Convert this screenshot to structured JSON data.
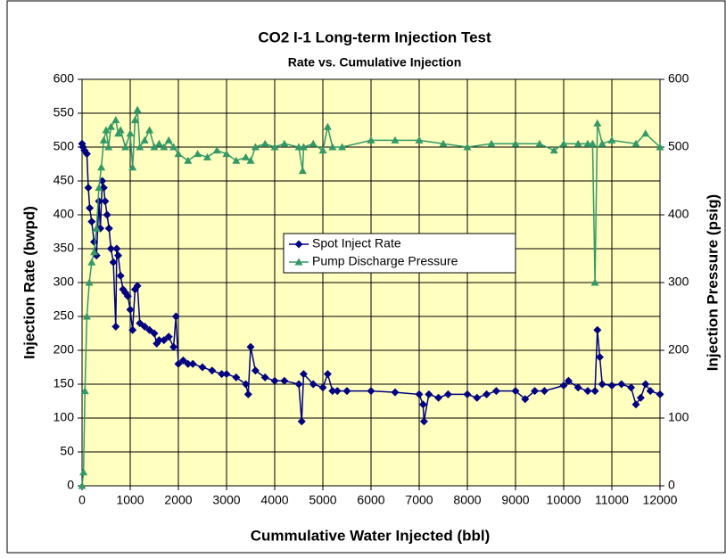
{
  "chart_data": {
    "type": "line",
    "title": "CO2 I-1 Long-term Injection Test",
    "subtitle": "Rate vs. Cumulative Injection",
    "x_label": "Cummulative Water Injected (bbl)",
    "y_label": "Injection Rate (bwpd)",
    "y2_label": "Injection Pressure (psig)",
    "xlim": [
      0,
      12000
    ],
    "xticks": [
      0,
      1000,
      2000,
      3000,
      4000,
      5000,
      6000,
      7000,
      8000,
      9000,
      10000,
      11000,
      12000
    ],
    "ylim": [
      0,
      600
    ],
    "yticks": [
      0,
      50,
      100,
      150,
      200,
      250,
      300,
      350,
      400,
      450,
      500,
      550,
      600
    ],
    "y2lim": [
      0,
      600
    ],
    "y2ticks": [
      0,
      100,
      200,
      300,
      400,
      500,
      600
    ],
    "grid": true,
    "legend": "center",
    "series": [
      {
        "name": "Spot Inject Rate",
        "color": "#000080",
        "marker": "diamond",
        "x": [
          0,
          20,
          50,
          100,
          130,
          160,
          200,
          250,
          300,
          350,
          380,
          420,
          450,
          480,
          520,
          560,
          600,
          650,
          700,
          720,
          750,
          800,
          850,
          900,
          950,
          1000,
          1050,
          1100,
          1150,
          1200,
          1300,
          1400,
          1500,
          1550,
          1600,
          1700,
          1800,
          1900,
          1950,
          2000,
          2100,
          2200,
          2300,
          2500,
          2700,
          2900,
          3000,
          3200,
          3400,
          3450,
          3500,
          3600,
          3800,
          4000,
          4200,
          4500,
          4560,
          4600,
          4800,
          5000,
          5100,
          5200,
          5300,
          5500,
          6000,
          6500,
          7000,
          7080,
          7100,
          7200,
          7400,
          7600,
          8000,
          8200,
          8400,
          8600,
          9000,
          9200,
          9400,
          9600,
          10000,
          10100,
          10300,
          10500,
          10650,
          10700,
          10750,
          10800,
          11000,
          11200,
          11400,
          11500,
          11600,
          11700,
          11800,
          12000
        ],
        "values": [
          505,
          500,
          495,
          490,
          440,
          410,
          390,
          360,
          340,
          420,
          380,
          450,
          440,
          420,
          400,
          380,
          350,
          330,
          235,
          350,
          340,
          310,
          290,
          285,
          280,
          260,
          230,
          290,
          295,
          240,
          235,
          230,
          225,
          210,
          215,
          215,
          220,
          205,
          250,
          180,
          185,
          180,
          180,
          175,
          170,
          165,
          165,
          160,
          150,
          135,
          205,
          170,
          160,
          155,
          155,
          150,
          95,
          165,
          150,
          145,
          165,
          140,
          140,
          140,
          140,
          138,
          135,
          120,
          95,
          135,
          130,
          135,
          135,
          130,
          135,
          140,
          140,
          128,
          140,
          140,
          148,
          155,
          145,
          140,
          140,
          230,
          190,
          150,
          148,
          150,
          145,
          120,
          130,
          150,
          140,
          135
        ]
      },
      {
        "name": "Pump Discharge Pressure",
        "color": "#339966",
        "marker": "triangle",
        "axis": "y2",
        "x": [
          0,
          30,
          60,
          100,
          150,
          200,
          250,
          300,
          350,
          400,
          450,
          500,
          550,
          600,
          700,
          750,
          800,
          900,
          1000,
          1050,
          1100,
          1150,
          1200,
          1300,
          1400,
          1500,
          1600,
          1700,
          1800,
          1900,
          2000,
          2200,
          2400,
          2600,
          2800,
          3000,
          3200,
          3400,
          3500,
          3600,
          3800,
          4000,
          4200,
          4500,
          4580,
          4600,
          4800,
          5000,
          5100,
          5200,
          5400,
          6000,
          6500,
          7000,
          7500,
          8000,
          8500,
          9000,
          9500,
          9800,
          10000,
          10300,
          10500,
          10600,
          10650,
          10700,
          10800,
          11000,
          11500,
          11700,
          12000
        ],
        "values": [
          0,
          20,
          140,
          250,
          300,
          330,
          345,
          380,
          440,
          470,
          510,
          525,
          500,
          530,
          540,
          520,
          525,
          500,
          520,
          470,
          540,
          555,
          500,
          510,
          525,
          500,
          505,
          500,
          510,
          500,
          490,
          480,
          490,
          485,
          495,
          490,
          480,
          485,
          480,
          500,
          505,
          500,
          505,
          500,
          465,
          500,
          505,
          495,
          530,
          500,
          500,
          510,
          510,
          510,
          505,
          500,
          505,
          505,
          505,
          495,
          505,
          505,
          505,
          505,
          300,
          535,
          505,
          510,
          505,
          520,
          500
        ]
      }
    ]
  }
}
